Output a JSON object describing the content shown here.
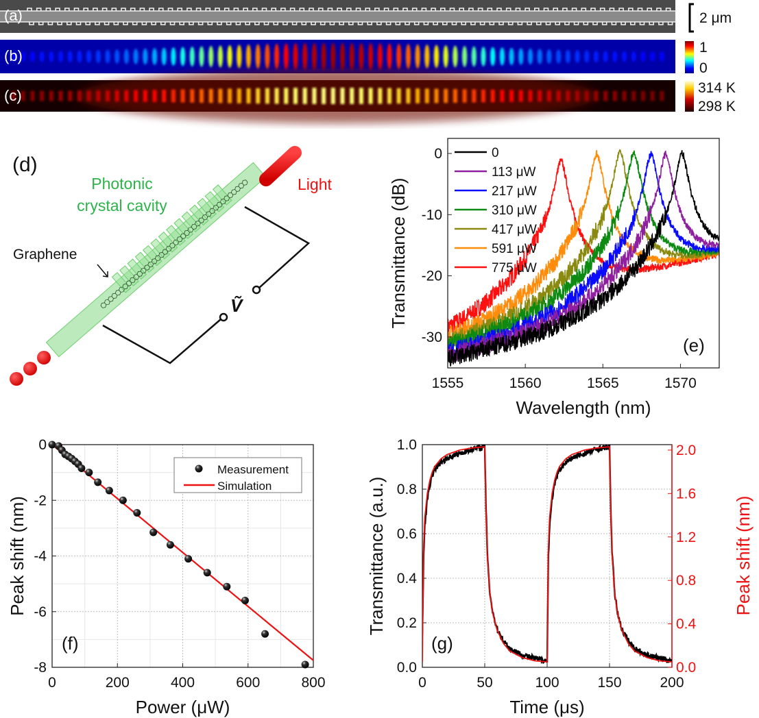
{
  "top_panels": {
    "a": {
      "label": "(a)",
      "scale_bar": "2 μm"
    },
    "b": {
      "label": "(b)",
      "colorbar_max": "1",
      "colorbar_min": "0",
      "colormap": "jet"
    },
    "c": {
      "label": "(c)",
      "colorbar_max": "314 K",
      "colorbar_min": "298 K",
      "colormap": "hot"
    }
  },
  "schematic": {
    "label": "(d)",
    "cavity_text_1": "Photonic",
    "cavity_text_2": "crystal cavity",
    "light_text": "Light",
    "graphene_text": "Graphene",
    "voltage_symbol": "Ṽ",
    "colors": {
      "cavity": "#2db34a",
      "light": "#ee1111"
    }
  },
  "chart_data": [
    {
      "panel": "(e)",
      "type": "line",
      "xlabel": "Wavelength (nm)",
      "ylabel": "Transmittance (dB)",
      "xlim": [
        1555,
        1572.5
      ],
      "ylim": [
        -35,
        2.5
      ],
      "xticks": [
        1555,
        1560,
        1565,
        1570
      ],
      "yticks": [
        0,
        -10,
        -20,
        -30
      ],
      "legend_position": "top-left",
      "series": [
        {
          "name": "0",
          "color": "#000000",
          "peak_wavelength": 1570.1,
          "peak_db": -0.1
        },
        {
          "name": "113 μW",
          "color": "#8e1f9e",
          "peak_wavelength": 1569.05,
          "peak_db": -0.2
        },
        {
          "name": "217 μW",
          "color": "#0a0aff",
          "peak_wavelength": 1568.1,
          "peak_db": -0.2
        },
        {
          "name": "310 μW",
          "color": "#0d8a12",
          "peak_wavelength": 1567.0,
          "peak_db": 0.1
        },
        {
          "name": "417 μW",
          "color": "#8a8a10",
          "peak_wavelength": 1566.1,
          "peak_db": 0.1
        },
        {
          "name": "591 μW",
          "color": "#ff8c0a",
          "peak_wavelength": 1564.6,
          "peak_db": -0.2
        },
        {
          "name": "775 μW",
          "color": "#ff1010",
          "peak_wavelength": 1562.3,
          "peak_db": -1.3
        }
      ]
    },
    {
      "panel": "(f)",
      "type": "scatter",
      "xlabel": "Power (μW)",
      "ylabel": "Peak shift (nm)",
      "xlim": [
        0,
        800
      ],
      "ylim": [
        -8,
        0
      ],
      "xticks": [
        0,
        200,
        400,
        600,
        800
      ],
      "yticks": [
        0,
        -2,
        -4,
        -6,
        -8
      ],
      "grid": true,
      "legend_position": "top-right",
      "series": [
        {
          "name": "Measurement",
          "kind": "scatter",
          "color": "#000000",
          "x": [
            0,
            20,
            30,
            40,
            50,
            60,
            70,
            80,
            90,
            113,
            140,
            175,
            217,
            260,
            310,
            362,
            417,
            475,
            535,
            591,
            652,
            775
          ],
          "y": [
            0,
            -0.05,
            -0.2,
            -0.35,
            -0.42,
            -0.5,
            -0.6,
            -0.7,
            -0.85,
            -1.0,
            -1.35,
            -1.65,
            -2.0,
            -2.45,
            -3.15,
            -3.6,
            -4.1,
            -4.6,
            -5.1,
            -5.6,
            -6.8,
            -7.9
          ]
        },
        {
          "name": "Simulation",
          "kind": "line",
          "color": "#ee1111",
          "x": [
            0,
            800
          ],
          "y": [
            0,
            -7.75
          ]
        }
      ]
    },
    {
      "panel": "(g)",
      "type": "line",
      "xlabel": "Time (μs)",
      "ylabel": "Transmittance (a.u.)",
      "ylabel_right": "Peak shift (nm)",
      "xlim": [
        0,
        200
      ],
      "ylim": [
        0,
        1.0
      ],
      "ylim_right": [
        0,
        2.05
      ],
      "xticks": [
        0,
        50,
        100,
        150,
        200
      ],
      "yticks": [
        "0.0",
        "0.2",
        "0.4",
        "0.6",
        "0.8",
        "1.0"
      ],
      "yticks_right": [
        "0.0",
        "0.4",
        "0.8",
        "1.2",
        "1.6",
        "2.0"
      ],
      "grid": true,
      "right_axis_color": "#ee1111",
      "series": [
        {
          "axis": "left",
          "color": "#000000",
          "x": [
            0,
            1,
            2,
            4,
            6,
            8,
            10,
            15,
            20,
            30,
            40,
            49.9,
            50,
            51,
            52,
            54,
            56,
            58,
            60,
            65,
            70,
            80,
            90,
            99.9,
            100,
            101,
            102,
            104,
            106,
            108,
            110,
            115,
            120,
            130,
            140,
            149.9,
            150,
            151,
            152,
            154,
            156,
            158,
            160,
            165,
            170,
            180,
            190,
            200
          ],
          "y": [
            0.15,
            0.5,
            0.64,
            0.76,
            0.82,
            0.86,
            0.89,
            0.92,
            0.94,
            0.96,
            0.98,
            0.99,
            0.99,
            0.72,
            0.52,
            0.34,
            0.26,
            0.21,
            0.17,
            0.12,
            0.085,
            0.055,
            0.04,
            0.03,
            0.03,
            0.5,
            0.64,
            0.76,
            0.82,
            0.86,
            0.89,
            0.92,
            0.94,
            0.96,
            0.98,
            0.99,
            0.99,
            0.72,
            0.52,
            0.34,
            0.26,
            0.21,
            0.17,
            0.12,
            0.085,
            0.055,
            0.04,
            0.03
          ]
        },
        {
          "axis": "right",
          "color": "#ee1111",
          "x": [
            0,
            1,
            2,
            4,
            6,
            8,
            10,
            15,
            20,
            30,
            40,
            49.9,
            50,
            51,
            52,
            54,
            56,
            58,
            60,
            65,
            70,
            80,
            90,
            99.9,
            100,
            101,
            102,
            104,
            106,
            108,
            110,
            115,
            120,
            130,
            140,
            149.9,
            150,
            151,
            152,
            154,
            156,
            158,
            160,
            165,
            170,
            180,
            190,
            200
          ],
          "y": [
            0.05,
            1.1,
            1.38,
            1.6,
            1.72,
            1.8,
            1.85,
            1.92,
            1.96,
            2.0,
            2.02,
            2.03,
            2.03,
            1.45,
            1.05,
            0.7,
            0.52,
            0.42,
            0.34,
            0.22,
            0.15,
            0.09,
            0.06,
            0.05,
            0.05,
            1.1,
            1.38,
            1.6,
            1.72,
            1.8,
            1.85,
            1.92,
            1.96,
            2.0,
            2.02,
            2.03,
            2.03,
            1.45,
            1.05,
            0.7,
            0.52,
            0.42,
            0.34,
            0.22,
            0.15,
            0.09,
            0.06,
            0.05
          ]
        }
      ]
    }
  ]
}
